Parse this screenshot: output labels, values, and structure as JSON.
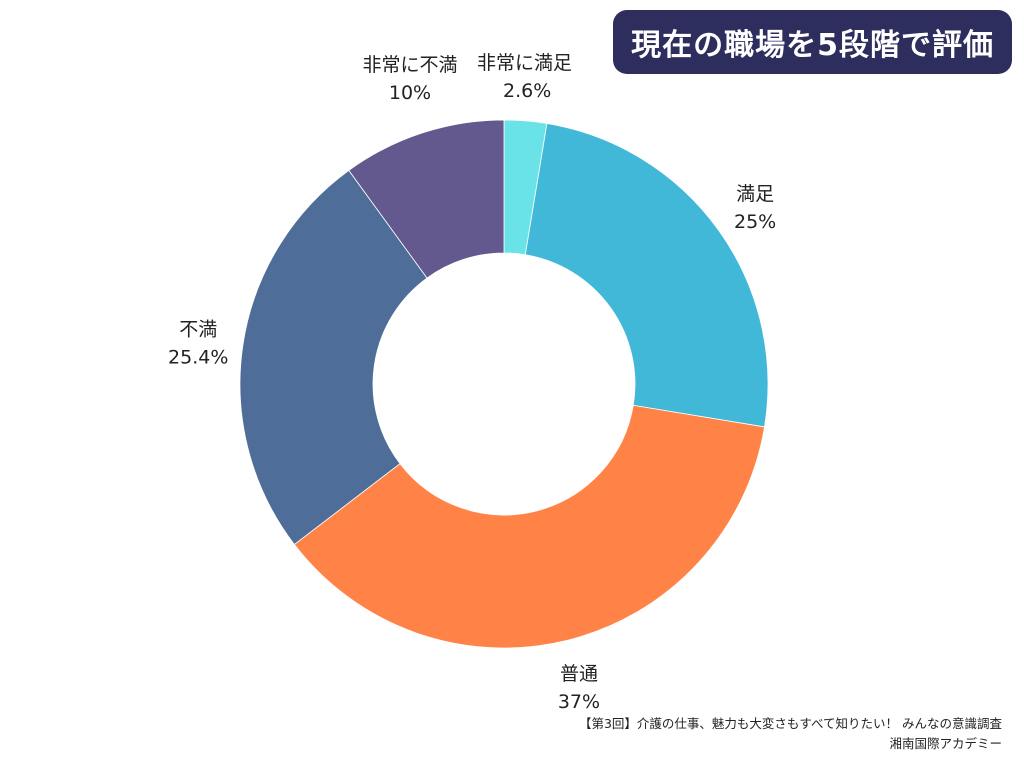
{
  "title": "現在の職場を5段階で評価",
  "chart_data": {
    "type": "pie",
    "donut": true,
    "slices": [
      {
        "name": "非常に満足",
        "value": 2.6,
        "label": "2.6%",
        "color": "#6ae3e8"
      },
      {
        "name": "満足",
        "value": 25,
        "label": "25%",
        "color": "#42b8d8"
      },
      {
        "name": "普通",
        "value": 37,
        "label": "37%",
        "color": "#ff8347"
      },
      {
        "name": "不満",
        "value": 25.4,
        "label": "25.4%",
        "color": "#4e6d98"
      },
      {
        "name": "非常に不満",
        "value": 10,
        "label": "10%",
        "color": "#63598e"
      }
    ]
  },
  "source": {
    "line1": "【第3回】介護の仕事、魅力も大変さもすべて知りたい！ みんなの意識調査",
    "line2": "湘南国際アカデミー"
  }
}
